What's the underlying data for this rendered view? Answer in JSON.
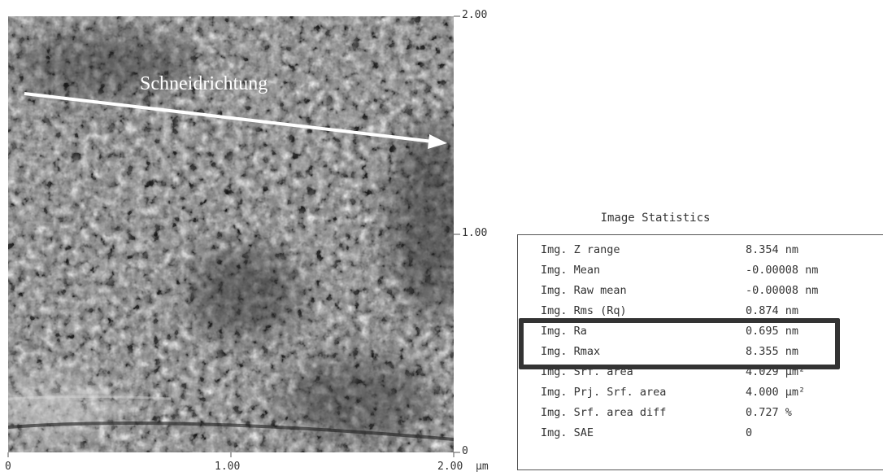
{
  "afm_image": {
    "annotation": "Schneidrichtung",
    "x_axis": {
      "ticks": [
        "0",
        "1.00",
        "2.00"
      ],
      "unit": "µm"
    },
    "y_axis": {
      "ticks": [
        "2.00",
        "1.00",
        "0"
      ]
    },
    "arrow_color": "#ffffff"
  },
  "stats": {
    "title": "Image Statistics",
    "rows": [
      {
        "label": "Img. Z range",
        "value": "8.354 nm"
      },
      {
        "label": "Img. Mean",
        "value": "-0.00008 nm"
      },
      {
        "label": "Img. Raw mean",
        "value": "-0.00008 nm"
      },
      {
        "label": "Img. Rms (Rq)",
        "value": "0.874 nm"
      },
      {
        "label": "Img. Ra",
        "value": "0.695 nm"
      },
      {
        "label": "Img. Rmax",
        "value": "8.355 nm"
      },
      {
        "label": "Img. Srf. area",
        "value": "4.029 µm²"
      },
      {
        "label": "Img. Prj. Srf. area",
        "value": "4.000 µm²"
      },
      {
        "label": "Img. Srf. area diff",
        "value": "0.727 %"
      },
      {
        "label": "Img. SAE",
        "value": "0"
      }
    ],
    "highlighted_rows": [
      "Img. Ra",
      "Img. Rmax"
    ],
    "highlight_color": "#333333"
  }
}
